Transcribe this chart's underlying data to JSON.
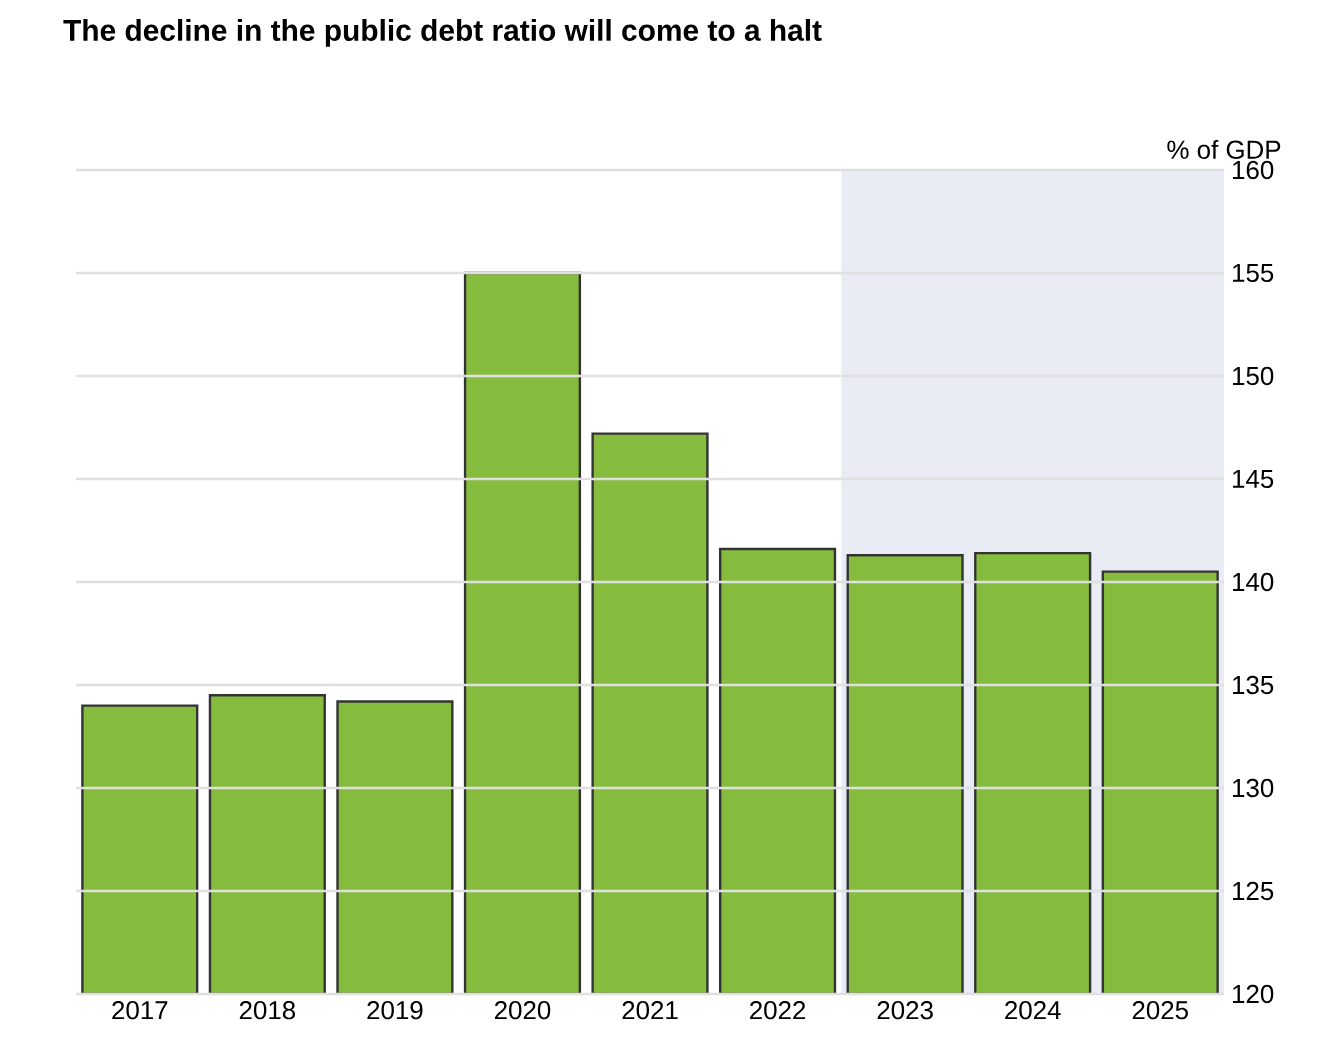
{
  "chart_data": {
    "type": "bar",
    "title": "The decline in the public debt ratio will come to a halt",
    "ylabel": "% of GDP",
    "categories": [
      "2017",
      "2018",
      "2019",
      "2020",
      "2021",
      "2022",
      "2023",
      "2024",
      "2025"
    ],
    "values": [
      134.0,
      134.5,
      134.2,
      155.0,
      147.2,
      141.6,
      141.3,
      141.4,
      140.5
    ],
    "color": "#86bc3e",
    "ylim": [
      120,
      160
    ],
    "yticks": [
      120,
      125,
      130,
      135,
      140,
      145,
      150,
      155,
      160
    ],
    "grid": "y",
    "bands": [
      {
        "axis": "x",
        "from": "2023",
        "to": "2025",
        "color": "#e9ebf5"
      }
    ]
  }
}
